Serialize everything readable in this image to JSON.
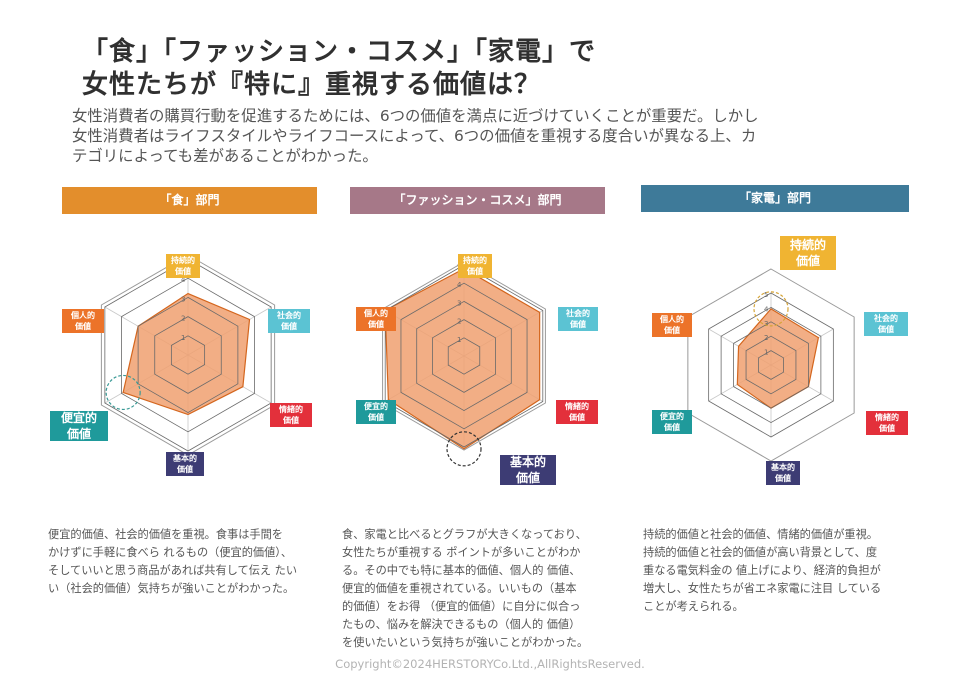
{
  "header": {
    "title_lines": [
      "「食」「ファッション・コスメ」「家電」で",
      "女性たちが『特に』重視する価値は？"
    ],
    "lead_lines": [
      "女性消費者の購買行動を促進するためには、6つの価値を満点に近づけていくことが重要だ。しかし",
      "女性消費者はライフスタイルやライフコースによって、6つの価値を重視する度合いが異なる上、カ",
      "テゴリによっても差があることがわかった。"
    ]
  },
  "colors": {
    "axis_labels": [
      "#f0b432",
      "#5bc3d3",
      "#e3303b",
      "#3d3c74",
      "#1f9a9b",
      "#ec7329"
    ],
    "banners": [
      "#e38e2c",
      "#a67888",
      "#3e7a99"
    ],
    "polygon_fill": "#f0a070",
    "polygon_stroke": "#d4661e",
    "highlight_circle": [
      "#3a9a96",
      "#333333",
      "#d6a437"
    ]
  },
  "chart_data": [
    {
      "type": "radar",
      "title": "「食」部門",
      "axes": [
        [
          "持続的",
          "価値"
        ],
        [
          "社会的",
          "価値"
        ],
        [
          "情緒的",
          "価値"
        ],
        [
          "基本的",
          "価値"
        ],
        [
          "便宜的",
          "価値"
        ],
        [
          "個人的",
          "価値"
        ]
      ],
      "tick_labels": [
        "1",
        "2",
        "3",
        "4",
        "5"
      ],
      "rlim": [
        0,
        5
      ],
      "values": [
        3.2,
        3.7,
        3.3,
        3.1,
        3.9,
        3.0
      ],
      "highlighted_axes": [
        4
      ],
      "description": [
        "便宜的価値、社会的価値を重視。食事は手間を",
        "かけずに手軽に食べら れるもの（便宜的価値）、",
        "そしていいと思う商品があれば共有して伝え たい",
        "い（社会的価値）気持ちが強いことがわかった。"
      ]
    },
    {
      "type": "radar",
      "title": "「ファッション・コスメ」部門",
      "axes": [
        [
          "持続的",
          "価値"
        ],
        [
          "社会的",
          "価値"
        ],
        [
          "情緒的",
          "価値"
        ],
        [
          "基本的",
          "価値"
        ],
        [
          "便宜的",
          "価値"
        ],
        [
          "個人的",
          "価値"
        ]
      ],
      "tick_labels": [
        "1",
        "2",
        "3",
        "4",
        "5"
      ],
      "rlim": [
        0,
        5
      ],
      "values": [
        4.8,
        4.8,
        4.8,
        5.1,
        4.8,
        5.0
      ],
      "highlighted_axes": [
        3
      ],
      "description": [
        "食、家電と比べるとグラフが大きくなっており、",
        "女性たちが重視する ポイントが多いことがわか",
        "る。その中でも特に基本的価値、個人的 価値、",
        "便宜的価値を重視されている。いいもの（基本",
        "的価値）をお得 （便宜的価値）に自分に似合っ",
        "たもの、悩みを解決できるもの（個人的 価値）",
        "を使いたいという気持ちが強いことがわかった。"
      ]
    },
    {
      "type": "radar",
      "title": "「家電」部門",
      "axes": [
        [
          "持続的",
          "価値"
        ],
        [
          "社会的",
          "価値"
        ],
        [
          "情緒的",
          "価値"
        ],
        [
          "基本的",
          "価値"
        ],
        [
          "便宜的",
          "価値"
        ],
        [
          "個人的",
          "価値"
        ]
      ],
      "tick_labels": [
        "1",
        "2",
        "3",
        "4",
        "5"
      ],
      "rlim": [
        0,
        5
      ],
      "values": [
        3.9,
        3.8,
        3.0,
        3.0,
        2.7,
        2.6
      ],
      "highlighted_axes": [
        0
      ],
      "description": [
        "持続的価値と社会的価値、情緒的価値が重視。",
        "持続的価値と社会的価値が高い背景として、度",
        "重なる電気料金の 値上げにより、経済的負担が",
        "増大し、女性たちが省エネ家電に注目 している",
        "ことが考えられる。"
      ]
    }
  ],
  "footer": {
    "copyright": "Copyright©2024HERSTORYCo.Ltd.,AllRightsReserved."
  }
}
